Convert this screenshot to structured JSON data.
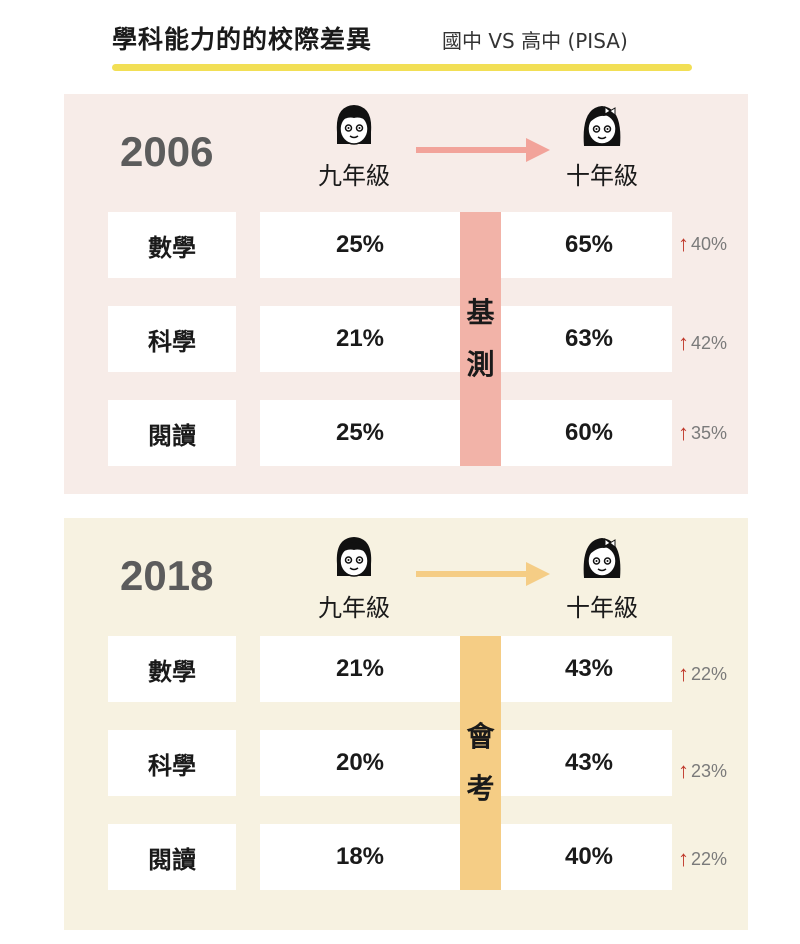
{
  "header": {
    "title": "學科能力的的校際差異",
    "subtitle": "國中 VS 高中 (PISA)",
    "underline_color": "#f2df55"
  },
  "chart_data": [
    {
      "type": "table",
      "year": "2006",
      "exam_label": [
        "基",
        "測"
      ],
      "from_grade": "九年級",
      "to_grade": "十年級",
      "panel_color": "#f7ece8",
      "bar_color": "#f2b3a8",
      "arrow_color": "#f2a39a",
      "rows": [
        {
          "subject": "數學",
          "from": "25%",
          "to": "65%",
          "increase": "40%"
        },
        {
          "subject": "科學",
          "from": "21%",
          "to": "63%",
          "increase": "42%"
        },
        {
          "subject": "閱讀",
          "from": "25%",
          "to": "60%",
          "increase": "35%"
        }
      ]
    },
    {
      "type": "table",
      "year": "2018",
      "exam_label": [
        "會",
        "考"
      ],
      "from_grade": "九年級",
      "to_grade": "十年級",
      "panel_color": "#f7f2e1",
      "bar_color": "#f5cd85",
      "arrow_color": "#f5cd85",
      "rows": [
        {
          "subject": "數學",
          "from": "21%",
          "to": "43%",
          "increase": "22%"
        },
        {
          "subject": "科學",
          "from": "20%",
          "to": "43%",
          "increase": "23%"
        },
        {
          "subject": "閱讀",
          "from": "18%",
          "to": "40%",
          "increase": "22%"
        }
      ]
    }
  ],
  "up_arrow_color": "#c0392b",
  "icons": {
    "avatar_left": "girl-short-hair-icon",
    "avatar_right": "girl-with-bow-icon",
    "up": "up-arrow-icon"
  }
}
